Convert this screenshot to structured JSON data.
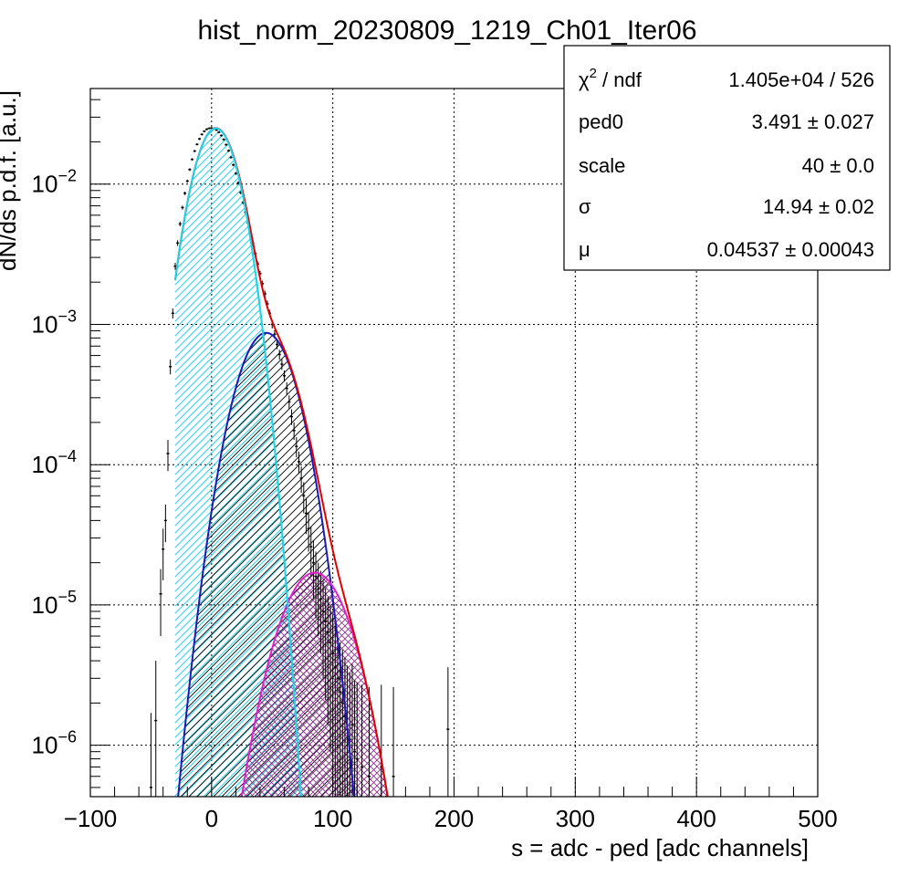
{
  "chart_data": {
    "type": "line",
    "title": "hist_norm_20230809_1219_Ch01_Iter06",
    "xlabel": "s = adc - ped [adc channels]",
    "ylabel": "dN/ds p.d.f. [a.u.]",
    "xlim": [
      -100,
      500
    ],
    "ylim": [
      4.3e-07,
      0.048
    ],
    "yscale": "log",
    "grid": true,
    "x_ticks": [
      {
        "value": -100,
        "label": "−100"
      },
      {
        "value": 0,
        "label": "0"
      },
      {
        "value": 100,
        "label": "100"
      },
      {
        "value": 200,
        "label": "200"
      },
      {
        "value": 300,
        "label": "300"
      },
      {
        "value": 400,
        "label": "400"
      },
      {
        "value": 500,
        "label": "500"
      }
    ],
    "y_ticks": [
      {
        "value": 1e-06,
        "base": "10",
        "exp": "−6"
      },
      {
        "value": 1e-05,
        "base": "10",
        "exp": "−5"
      },
      {
        "value": 0.0001,
        "base": "10",
        "exp": "−4"
      },
      {
        "value": 0.001,
        "base": "10",
        "exp": "−3"
      },
      {
        "value": 0.01,
        "base": "10",
        "exp": "−2"
      }
    ],
    "stats_box": {
      "position": "top-right",
      "rows": [
        {
          "label_base": "χ",
          "label_sup": "2",
          "label_rest": " / ndf",
          "value": "1.405e+04 / 526"
        },
        {
          "label_base": "ped0",
          "label_sup": "",
          "label_rest": "",
          "value": "3.491 ± 0.027"
        },
        {
          "label_base": "scale",
          "label_sup": "",
          "label_rest": "",
          "value": "40 ± 0.0"
        },
        {
          "label_base": "σ",
          "label_sup": "",
          "label_rest": "",
          "value": "14.94 ± 0.02"
        },
        {
          "label_base": "μ",
          "label_sup": "",
          "label_rest": "",
          "value": "0.04537 ± 0.00043"
        }
      ]
    },
    "components": [
      {
        "role": "pedestal (0 p.e.)",
        "color": "#22d3e6",
        "hatch_color": "#22d3e6",
        "hatch": "diagonal",
        "mean": 3.5,
        "sigma": 15,
        "peak": 0.025,
        "x_range": [
          -30,
          76
        ]
      },
      {
        "role": "1 p.e.",
        "color": "#1a1ab8",
        "hatch_color": "#000000",
        "hatch": "diagonal",
        "mean": 45,
        "sigma": 18.6,
        "peak": 0.00087,
        "x_range": [
          -28,
          120
        ]
      },
      {
        "role": "2 p.e.",
        "color": "#e020d0",
        "hatch_color": "#8a2a8a",
        "hatch": "cross",
        "mean": 85,
        "sigma": 22.2,
        "peak": 1.7e-05,
        "x_range": [
          20,
          150
        ]
      }
    ],
    "total_fit": {
      "color": "#e00000",
      "x_range": [
        -30,
        152
      ]
    },
    "data_points": {
      "color": "#000000",
      "x": [
        -50,
        -46,
        -42,
        -40,
        -38,
        -36,
        -34,
        -32,
        -30,
        -28,
        -26,
        -24,
        -22,
        -20,
        -18,
        -16,
        -14,
        -12,
        -10,
        -8,
        -6,
        -4,
        -2,
        0,
        2,
        4,
        6,
        8,
        10,
        12,
        14,
        16,
        18,
        20,
        22,
        24,
        26,
        28,
        30,
        32,
        34,
        36,
        38,
        40,
        42,
        44,
        46,
        48,
        50,
        52,
        54,
        56,
        58,
        60,
        62,
        64,
        66,
        68,
        70,
        72,
        74,
        76,
        78,
        80,
        82,
        84,
        86,
        88,
        90,
        92,
        94,
        96,
        98,
        100,
        102,
        104,
        106,
        108,
        110,
        112,
        114,
        116,
        118,
        120,
        124,
        130,
        140,
        150,
        195
      ],
      "y": [
        5e-07,
        1.5e-06,
        1.2e-05,
        2.5e-05,
        4e-05,
        0.00012,
        0.0005,
        0.0012,
        0.0026,
        0.0038,
        0.0052,
        0.0068,
        0.0086,
        0.0105,
        0.0127,
        0.015,
        0.0172,
        0.0192,
        0.021,
        0.0226,
        0.0238,
        0.0246,
        0.025,
        0.0251,
        0.0249,
        0.0243,
        0.0234,
        0.0222,
        0.0208,
        0.0191,
        0.0173,
        0.0155,
        0.0137,
        0.0119,
        0.0102,
        0.0087,
        0.0074,
        0.0063,
        0.0053,
        0.0045,
        0.0038,
        0.0032,
        0.0027,
        0.0023,
        0.00195,
        0.00165,
        0.0014,
        0.0012,
        0.001,
        0.00085,
        0.00072,
        0.00061,
        0.00052,
        0.00043,
        0.00035,
        0.00028,
        0.00022,
        0.000175,
        0.000135,
        0.000105,
        8e-05,
        6e-05,
        4.5e-05,
        3.5e-05,
        2.6e-05,
        2e-05,
        1.6e-05,
        1.3e-05,
        1.1e-05,
        9e-06,
        7.6e-06,
        6.4e-06,
        5.4e-06,
        4.5e-06,
        3.6e-06,
        3e-06,
        2.4e-06,
        2e-06,
        1.6e-06,
        1.3e-06,
        1.1e-06,
        1.4e-06,
        9e-07,
        8e-07,
        7e-07,
        6e-07,
        7e-07,
        6e-07,
        1.3e-06
      ],
      "err_hi": [
        1.2e-06,
        2.5e-06,
        6e-06,
        1e-05,
        1.2e-05,
        3e-05,
        6e-05,
        0.0001,
        0.00015,
        0.00018,
        0.0002,
        0.00022,
        0.00025,
        0.00027,
        0.0003,
        0.00032,
        0.00034,
        0.00036,
        0.00038,
        0.00039,
        0.0004,
        0.0004,
        0.0004,
        0.0004,
        0.0004,
        0.0004,
        0.0004,
        0.00039,
        0.00038,
        0.00036,
        0.00034,
        0.00032,
        0.0003,
        0.00028,
        0.00026,
        0.00024,
        0.00022,
        0.0002,
        0.00018,
        0.00016,
        0.00015,
        0.00013,
        0.00012,
        0.00011,
        0.0001,
        9e-05,
        8e-05,
        7e-05,
        6.5e-05,
        6e-05,
        5.5e-05,
        5e-05,
        4.5e-05,
        4e-05,
        3.6e-05,
        3.2e-05,
        2.8e-05,
        2.5e-05,
        2.2e-05,
        1.9e-05,
        1.7e-05,
        1.5e-05,
        1.3e-05,
        1.1e-05,
        1e-05,
        9e-06,
        8e-06,
        7e-06,
        6.5e-06,
        6e-06,
        5.5e-06,
        5e-06,
        4.5e-06,
        4e-06,
        3.6e-06,
        3.2e-06,
        3e-06,
        2.8e-06,
        2.6e-06,
        2.4e-06,
        2.2e-06,
        2.4e-06,
        2e-06,
        2e-06,
        2e-06,
        2e-06,
        2e-06,
        2e-06,
        2.3e-06
      ]
    }
  }
}
